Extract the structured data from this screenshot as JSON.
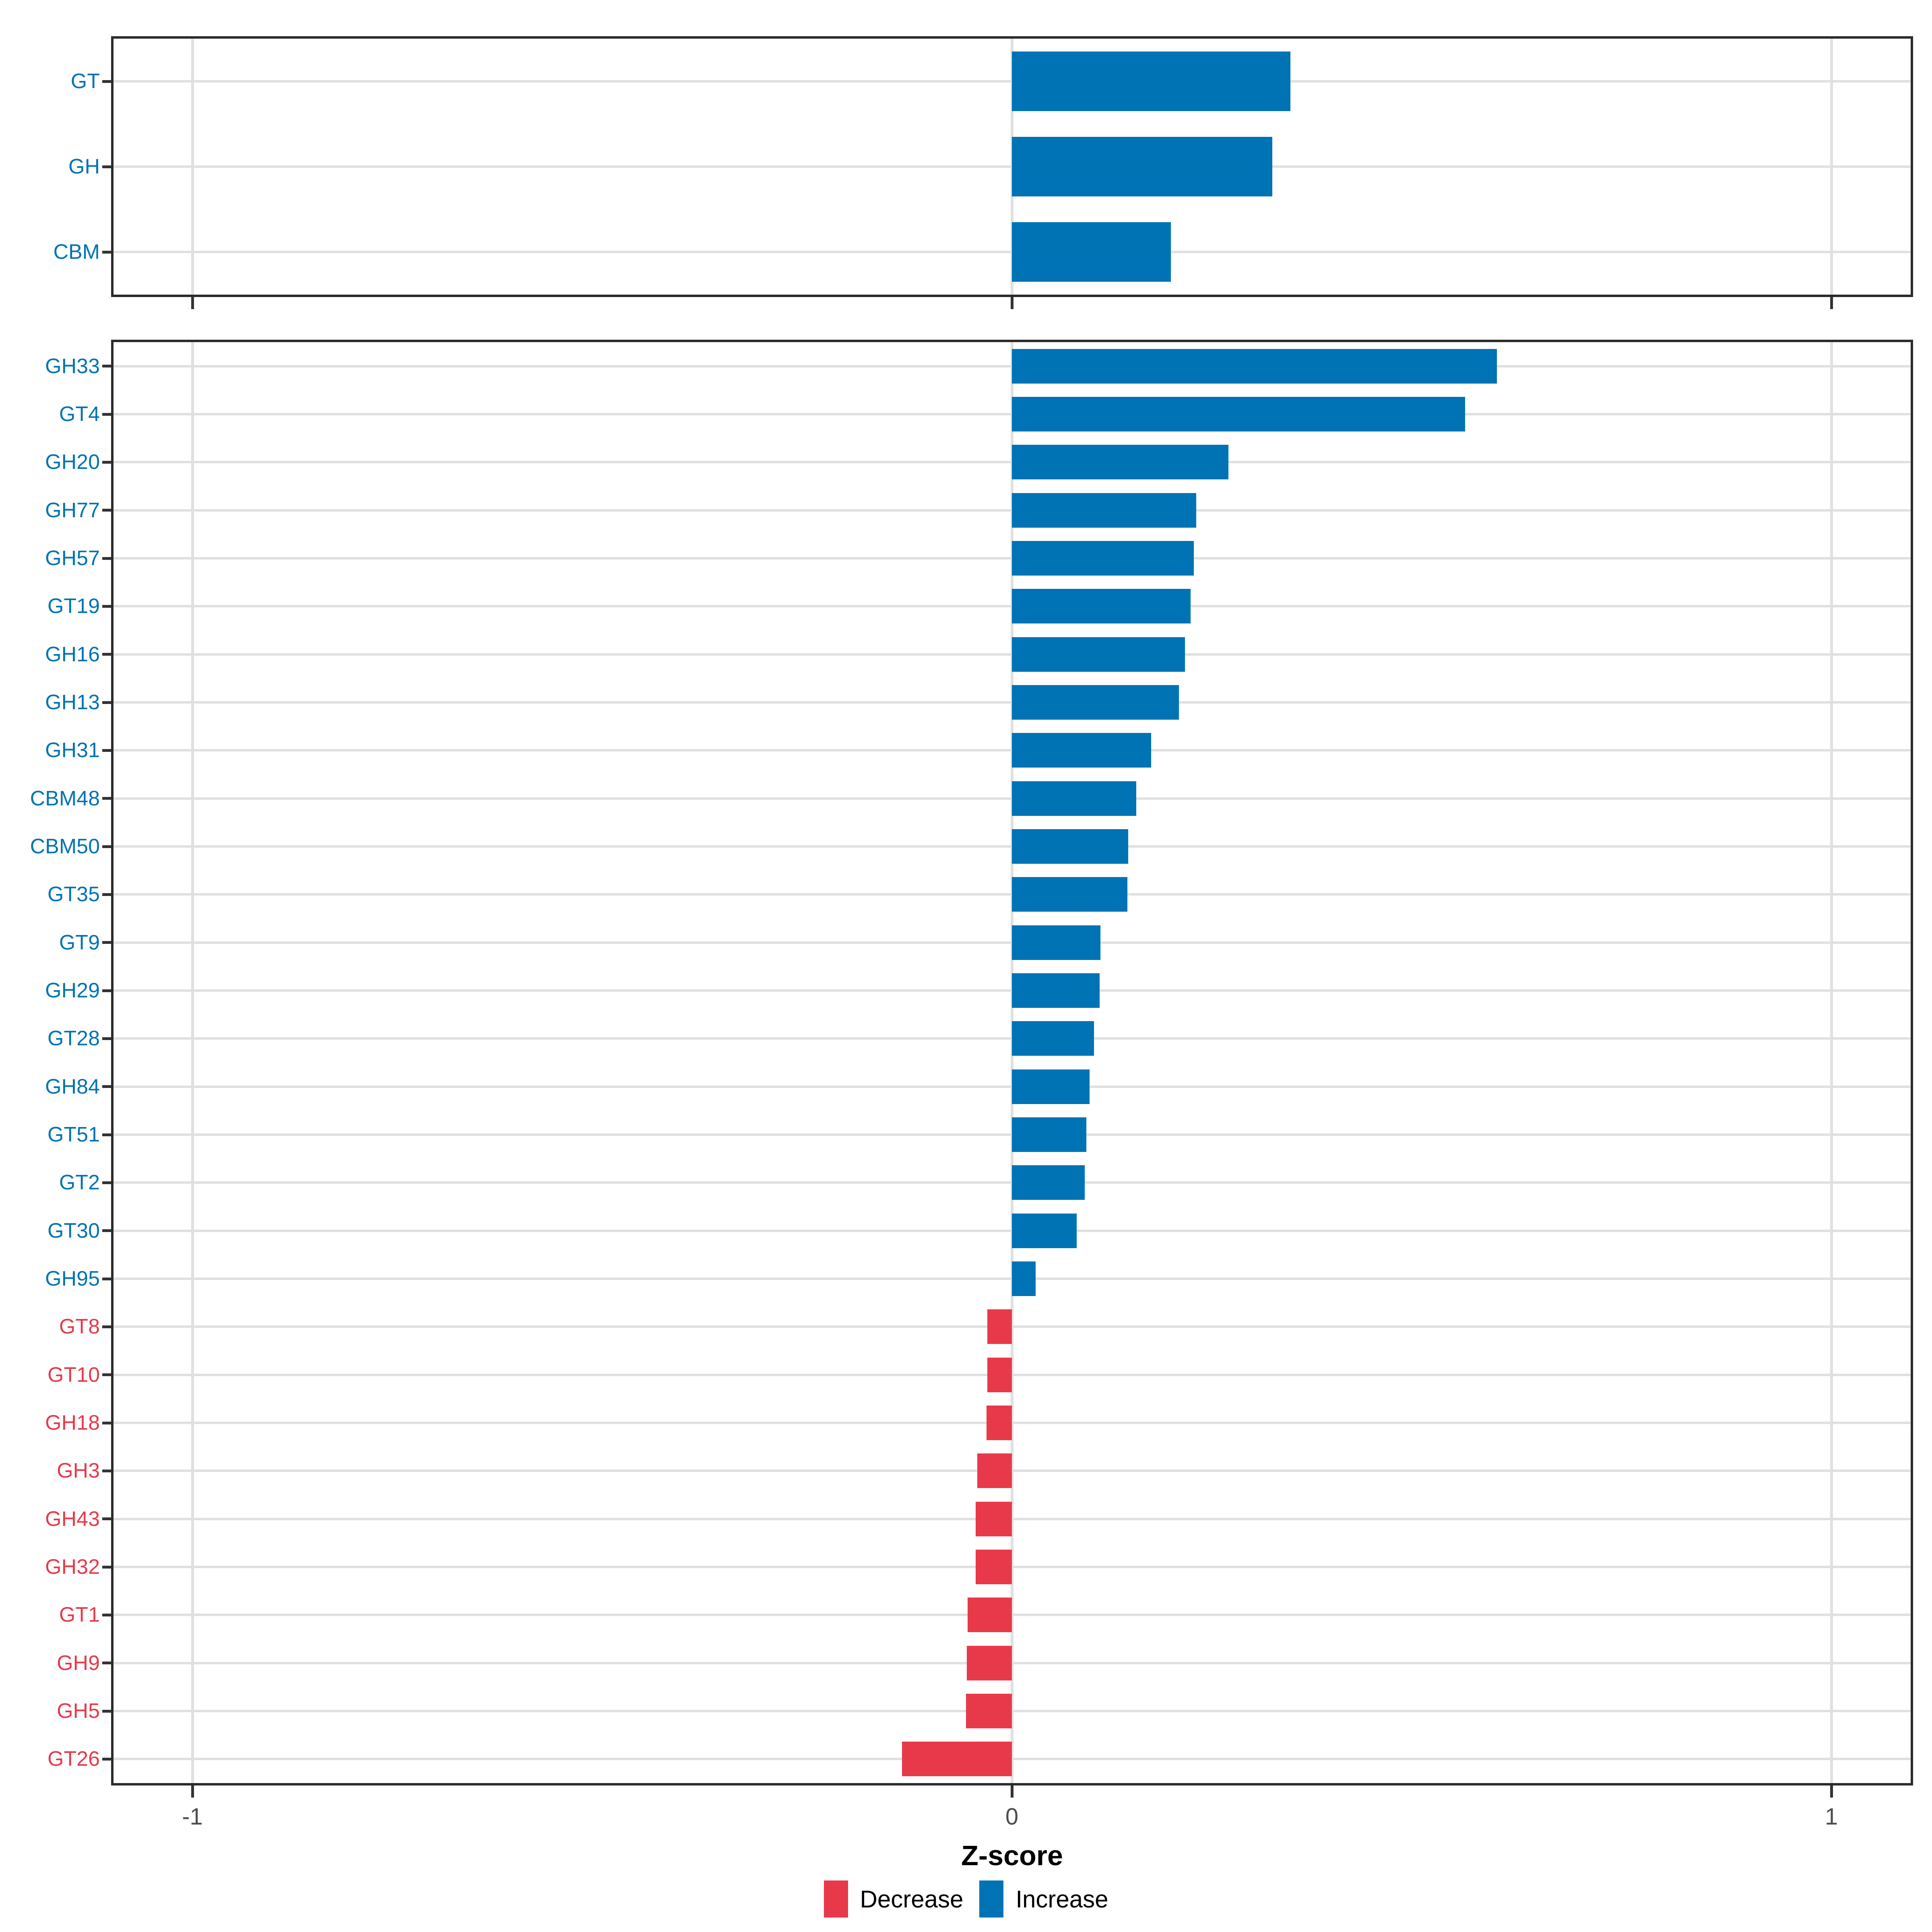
{
  "chart_data": {
    "type": "bar",
    "orientation": "horizontal",
    "xlabel": "Z-score",
    "x_ticks": [
      -1,
      0,
      1
    ],
    "x_tick_labels": [
      "-1",
      "0",
      "1"
    ],
    "xlim": [
      -1.1,
      1.1
    ],
    "grid": "major-only",
    "legend_position": "bottom",
    "colors": {
      "increase": "#0073B4",
      "decrease": "#E8394A",
      "axis_text": "#4d4d4d",
      "panel_border": "#2b2b2b",
      "gridline": "#e0e0e0"
    },
    "legend": [
      {
        "label": "Decrease",
        "color": "#E8394A"
      },
      {
        "label": "Increase",
        "color": "#0073B4"
      }
    ],
    "panels": [
      {
        "position": "top",
        "level": "class",
        "categories": [
          "GT",
          "GH",
          "CBM"
        ],
        "values": [
          0.34,
          0.318,
          0.194
        ],
        "directions": [
          "increase",
          "increase",
          "increase"
        ]
      },
      {
        "position": "bottom",
        "level": "family",
        "categories": [
          "GH33",
          "GT4",
          "GH20",
          "GH77",
          "GH57",
          "GT19",
          "GH16",
          "GH13",
          "GH31",
          "CBM48",
          "CBM50",
          "GT35",
          "GT9",
          "GH29",
          "GT28",
          "GH84",
          "GT51",
          "GT2",
          "GT30",
          "GH95",
          "GT8",
          "GT10",
          "GH18",
          "GH3",
          "GH43",
          "GH32",
          "GT1",
          "GH9",
          "GH5",
          "GT26"
        ],
        "values": [
          0.592,
          0.553,
          0.264,
          0.225,
          0.222,
          0.218,
          0.211,
          0.204,
          0.17,
          0.152,
          0.142,
          0.141,
          0.108,
          0.107,
          0.1,
          0.095,
          0.091,
          0.089,
          0.079,
          0.029,
          -0.03,
          -0.03,
          -0.031,
          -0.042,
          -0.044,
          -0.044,
          -0.054,
          -0.055,
          -0.056,
          -0.134
        ],
        "directions": [
          "increase",
          "increase",
          "increase",
          "increase",
          "increase",
          "increase",
          "increase",
          "increase",
          "increase",
          "increase",
          "increase",
          "increase",
          "increase",
          "increase",
          "increase",
          "increase",
          "increase",
          "increase",
          "increase",
          "increase",
          "decrease",
          "decrease",
          "decrease",
          "decrease",
          "decrease",
          "decrease",
          "decrease",
          "decrease",
          "decrease",
          "decrease"
        ]
      }
    ]
  }
}
